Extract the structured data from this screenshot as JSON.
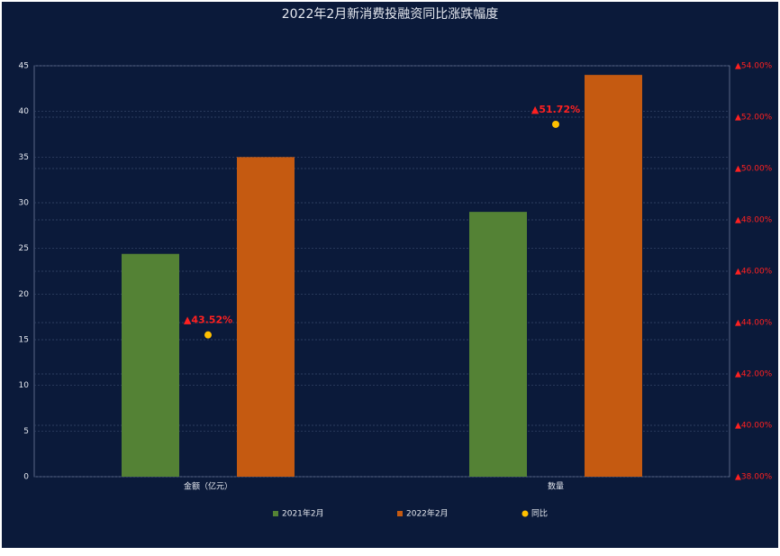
{
  "chart_data": {
    "type": "bar_dot",
    "title": "2022年2月新消费投融资同比涨跌幅度",
    "categories": [
      "金额（亿元）",
      "数量"
    ],
    "series": [
      {
        "name": "2021年2月",
        "color": "#548235",
        "values": [
          24.4,
          29.0
        ]
      },
      {
        "name": "2022年2月",
        "color": "#c55a11",
        "values": [
          35.0,
          44.0
        ]
      },
      {
        "name": "同比",
        "color": "#ffc000",
        "axis": "y2",
        "values": [
          43.52,
          51.72
        ],
        "value_labels": [
          "▲43.52%",
          "▲51.72%"
        ]
      }
    ],
    "ylim": [
      0,
      45
    ],
    "yticks": [
      0,
      5,
      10,
      15,
      20,
      25,
      30,
      35,
      40,
      45
    ],
    "y2lim": [
      38,
      54
    ],
    "y2ticks": [
      {
        "value": 38,
        "label": "▲38.00%"
      },
      {
        "value": 40,
        "label": "▲40.00%"
      },
      {
        "value": 42,
        "label": "▲42.00%"
      },
      {
        "value": 44,
        "label": "▲44.00%"
      },
      {
        "value": 46,
        "label": "▲46.00%"
      },
      {
        "value": 48,
        "label": "▲48.00%"
      },
      {
        "value": 50,
        "label": "▲50.00%"
      },
      {
        "value": 52,
        "label": "▲52.00%"
      },
      {
        "value": 54,
        "label": "▲54.00%"
      }
    ],
    "y2_tick_color": "#ff2020",
    "grid": true
  }
}
